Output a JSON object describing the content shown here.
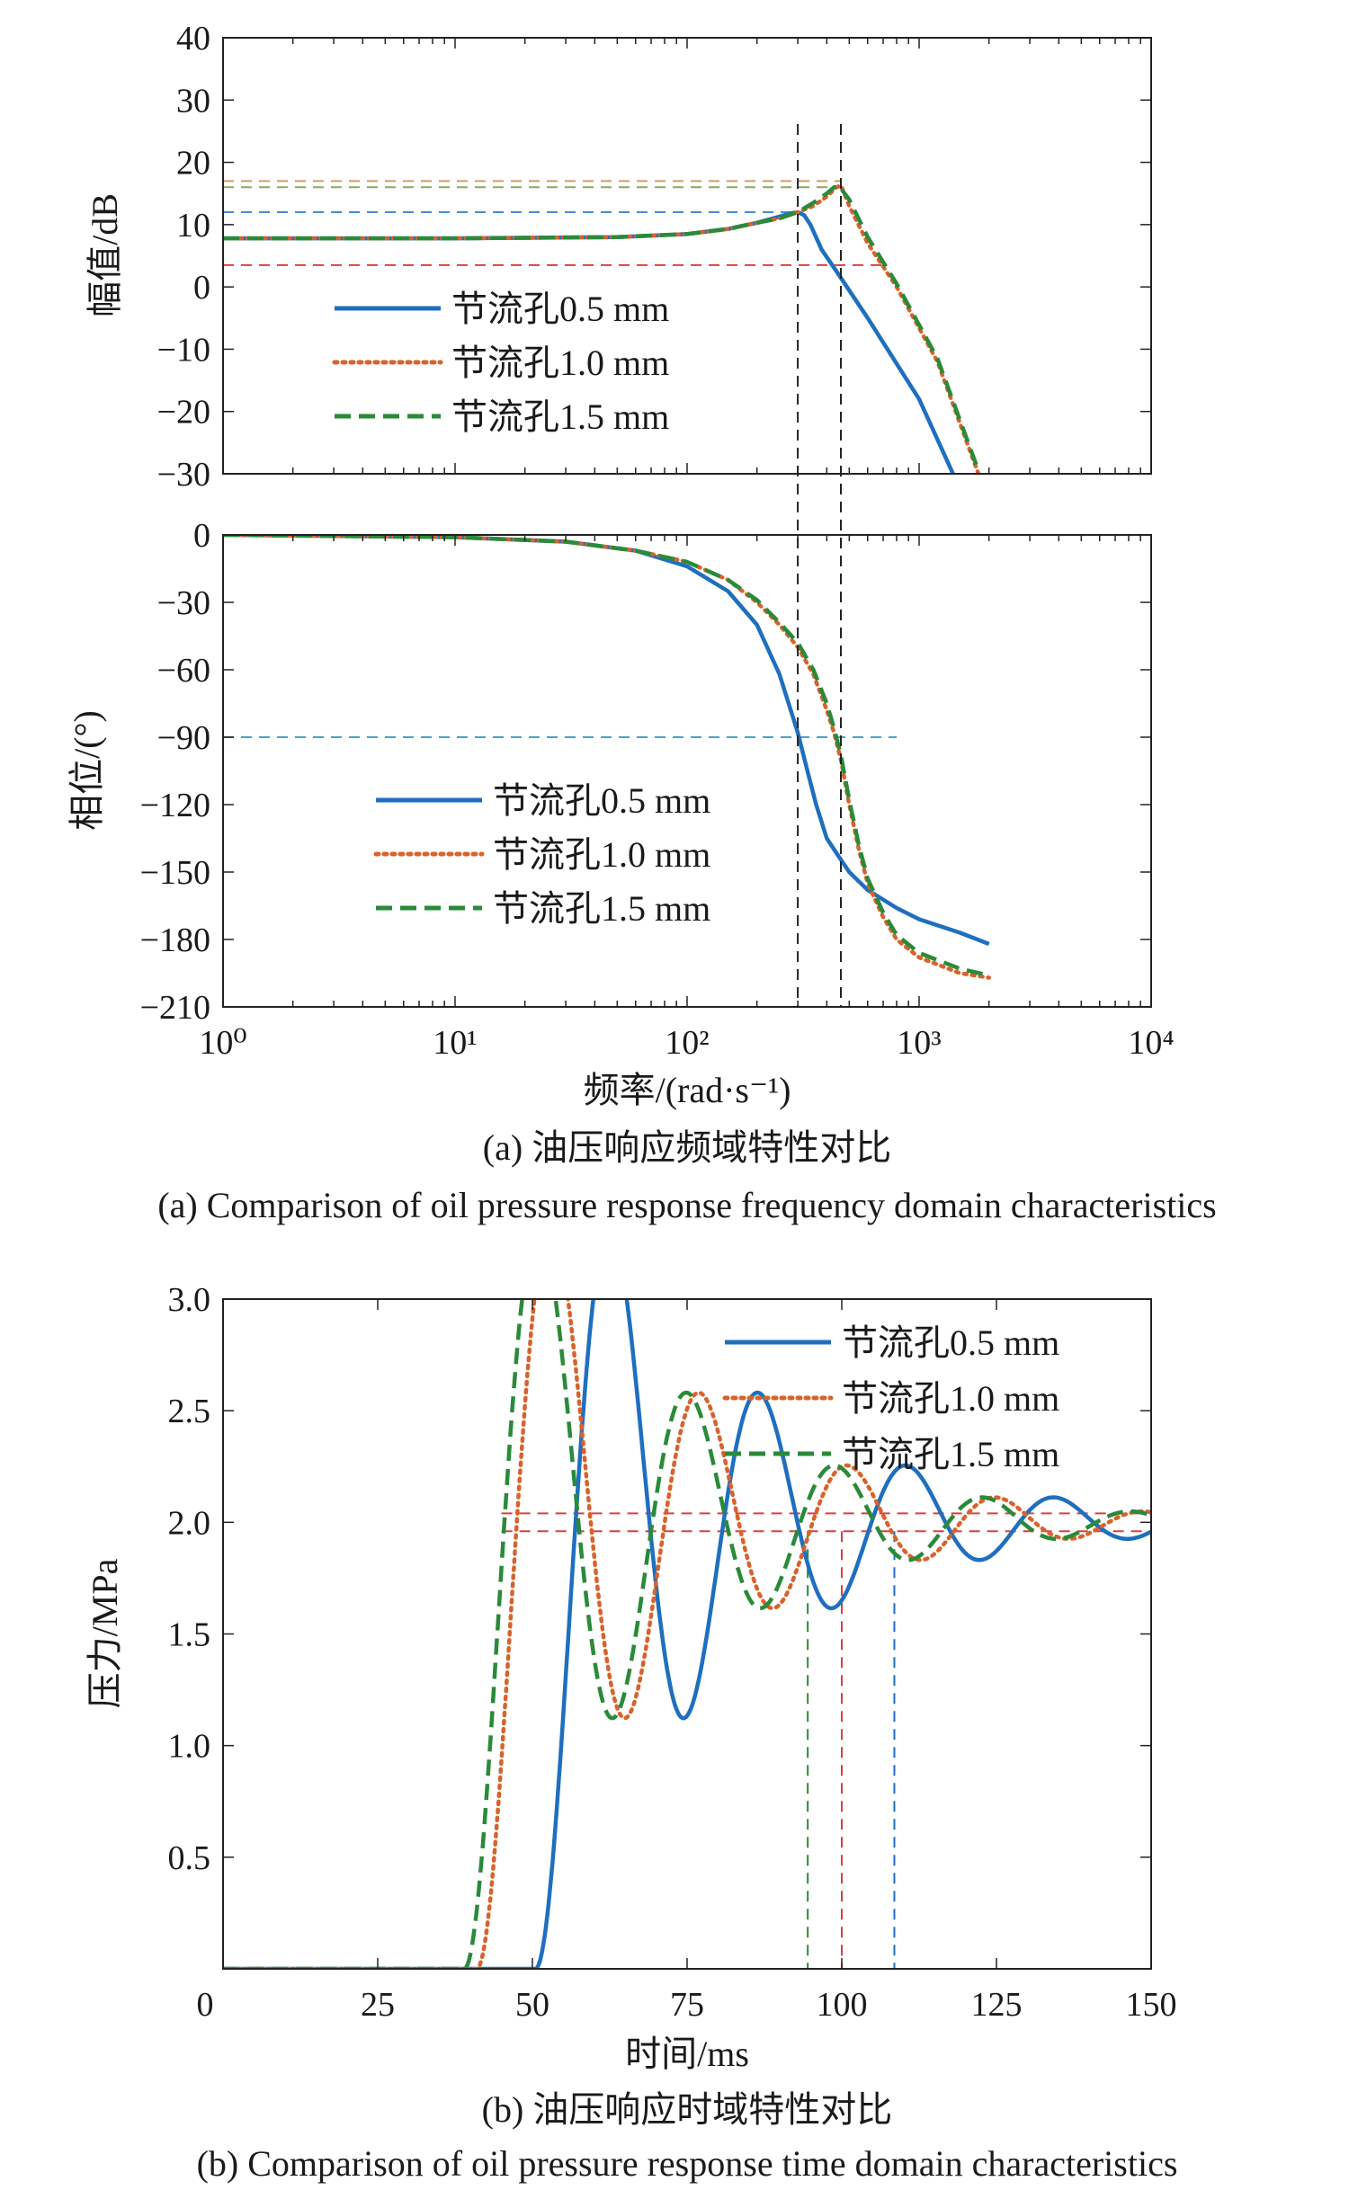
{
  "chart_data": [
    {
      "type": "line",
      "panel": "a-top",
      "ylabel": "幅值/dB",
      "xscale": "log",
      "xlim": [
        1,
        10000
      ],
      "ylim": [
        -30,
        40
      ],
      "yticks": [
        -30,
        -20,
        -10,
        0,
        10,
        20,
        30,
        40
      ],
      "legend_placement": "lower-left",
      "series": [
        {
          "name": "节流孔0.5 mm",
          "color": "#1f6fbf",
          "style": "solid",
          "x": [
            1,
            10,
            50,
            100,
            150,
            200,
            250,
            280,
            300,
            320,
            340,
            380,
            450,
            600,
            1000,
            1400
          ],
          "y": [
            7.8,
            7.8,
            8.0,
            8.5,
            9.3,
            10.3,
            11.3,
            11.8,
            12.0,
            11.5,
            10.0,
            6.0,
            2.0,
            -5.0,
            -18.0,
            -30.0
          ]
        },
        {
          "name": "节流孔1.0 mm",
          "color": "#d9622b",
          "style": "dotted",
          "x": [
            1,
            10,
            50,
            100,
            150,
            200,
            250,
            300,
            350,
            400,
            440,
            460,
            500,
            600,
            800,
            1200,
            1800
          ],
          "y": [
            7.8,
            7.8,
            8.0,
            8.5,
            9.3,
            10.3,
            11.0,
            12.0,
            13.0,
            14.5,
            16.0,
            16.3,
            13.0,
            7.0,
            0.0,
            -12.0,
            -30.0
          ]
        },
        {
          "name": "节流孔1.5 mm",
          "color": "#2a8a3a",
          "style": "dashed",
          "x": [
            1,
            10,
            50,
            100,
            150,
            200,
            250,
            300,
            350,
            400,
            430,
            450,
            500,
            600,
            800,
            1200,
            1800
          ],
          "y": [
            7.8,
            7.8,
            8.0,
            8.5,
            9.3,
            10.3,
            11.0,
            12.0,
            13.5,
            15.0,
            16.0,
            16.3,
            14.0,
            8.0,
            0.5,
            -11.5,
            -29.5
          ]
        }
      ],
      "ref_h": [
        {
          "y": 12.0,
          "x_end": 300,
          "color": "#4a8ad4"
        },
        {
          "y": 17.0,
          "x_end": 460,
          "color": "#c9a060"
        },
        {
          "y": 16.0,
          "x_end": 460,
          "color": "#8aa860"
        },
        {
          "y": 3.5,
          "x_end": 700,
          "color": "#d94040"
        }
      ],
      "ref_v": [
        300,
        460
      ]
    },
    {
      "type": "line",
      "panel": "a-bottom",
      "ylabel": "相位/(°)",
      "xlabel": "频率/(rad·s⁻¹)",
      "xscale": "log",
      "xlim": [
        1,
        10000
      ],
      "ylim": [
        -210,
        0
      ],
      "yticks": [
        -210,
        -180,
        -150,
        -120,
        -90,
        -60,
        -30,
        0
      ],
      "xticks_labels": [
        "10⁰",
        "10¹",
        "10²",
        "10³",
        "10⁴"
      ],
      "legend_placement": "lower-center",
      "series": [
        {
          "name": "节流孔0.5 mm",
          "color": "#1f6fbf",
          "style": "solid",
          "x": [
            1,
            10,
            30,
            60,
            100,
            150,
            200,
            250,
            300,
            330,
            360,
            400,
            450,
            500,
            600,
            800,
            1000,
            1500,
            2000
          ],
          "y": [
            0,
            -1,
            -3,
            -7,
            -14,
            -25,
            -40,
            -62,
            -88,
            -105,
            -120,
            -135,
            -143,
            -150,
            -158,
            -166,
            -171,
            -177,
            -182
          ]
        },
        {
          "name": "节流孔1.0 mm",
          "color": "#d9622b",
          "style": "dotted",
          "x": [
            1,
            10,
            30,
            60,
            100,
            150,
            200,
            250,
            300,
            350,
            400,
            430,
            460,
            500,
            550,
            600,
            700,
            800,
            1000,
            1500,
            2000
          ],
          "y": [
            0,
            -1,
            -3,
            -7,
            -12,
            -20,
            -30,
            -40,
            -50,
            -62,
            -78,
            -88,
            -100,
            -120,
            -140,
            -155,
            -170,
            -180,
            -188,
            -195,
            -197
          ]
        },
        {
          "name": "节流孔1.5 mm",
          "color": "#2a8a3a",
          "style": "dashed",
          "x": [
            1,
            10,
            30,
            60,
            100,
            150,
            200,
            250,
            300,
            350,
            400,
            430,
            460,
            500,
            550,
            600,
            700,
            800,
            1000,
            1500,
            2000
          ],
          "y": [
            0,
            -1,
            -3,
            -7,
            -12,
            -20,
            -29,
            -39,
            -48,
            -60,
            -75,
            -86,
            -98,
            -118,
            -138,
            -153,
            -168,
            -178,
            -186,
            -193,
            -196
          ]
        }
      ],
      "ref_h": [
        {
          "y": -90,
          "x_end": 800,
          "color": "#4aa0c8"
        }
      ],
      "ref_v": [
        300,
        460
      ]
    },
    {
      "type": "line",
      "panel": "b",
      "ylabel": "压力/MPa",
      "xlabel": "时间/ms",
      "xlim": [
        0,
        150
      ],
      "ylim": [
        0,
        3.0
      ],
      "xticks": [
        0,
        25,
        50,
        75,
        100,
        125,
        150
      ],
      "yticks": [
        0.5,
        1.0,
        1.5,
        2.0,
        2.5,
        3.0
      ],
      "legend_placement": "top-right",
      "series": [
        {
          "name": "节流孔0.5 mm",
          "color": "#1f6fbf",
          "style": "solid",
          "delay": 50.5
        },
        {
          "name": "节流孔1.0 mm",
          "color": "#d9622b",
          "style": "dotted",
          "delay": 41
        },
        {
          "name": "节流孔1.5 mm",
          "color": "#2a8a3a",
          "style": "dashed",
          "delay": 39
        }
      ],
      "ref_h": [
        {
          "y": 2.04,
          "color": "#d94040"
        },
        {
          "y": 1.96,
          "color": "#d94040"
        }
      ],
      "ref_v": [
        {
          "x": 94.5,
          "color": "#2a8a3a"
        },
        {
          "x": 100,
          "color": "#d94040"
        },
        {
          "x": 108.5,
          "color": "#1f6fbf"
        }
      ]
    }
  ],
  "captions": {
    "a_cn": "(a) 油压响应频域特性对比",
    "a_en": "(a) Comparison of oil pressure response frequency domain characteristics",
    "b_cn": "(b) 油压响应时域特性对比",
    "b_en": "(b) Comparison of oil pressure response time domain characteristics"
  }
}
